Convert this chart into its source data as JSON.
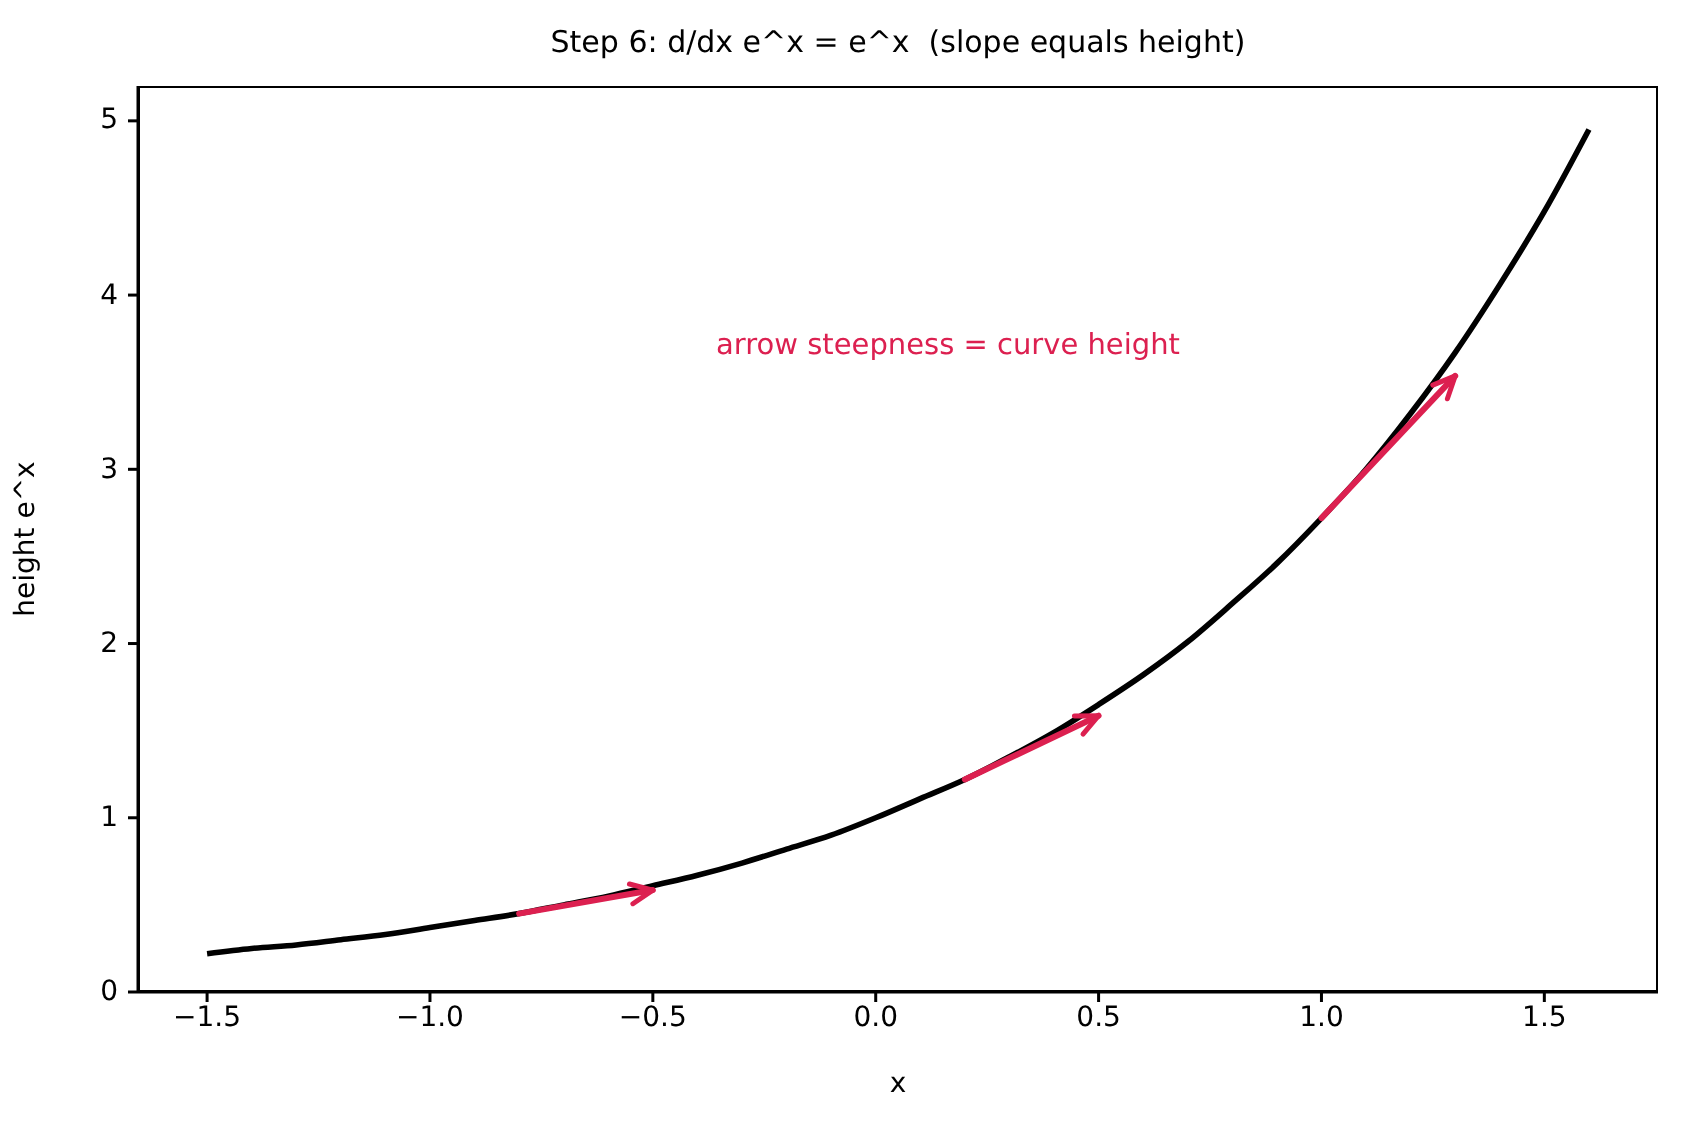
{
  "chart_data": {
    "type": "line",
    "title": "Step 6: d/dx e^x = e^x  (slope equals height)",
    "xlabel": "x",
    "ylabel": "height e^x",
    "xlim": [
      -1.655,
      1.755
    ],
    "ylim": [
      0,
      5.2
    ],
    "xticks": [
      {
        "value": -1.5,
        "label": "−1.5"
      },
      {
        "value": -1,
        "label": "−1.0"
      },
      {
        "value": -0.5,
        "label": "−0.5"
      },
      {
        "value": 0,
        "label": "0.0"
      },
      {
        "value": 0.5,
        "label": "0.5"
      },
      {
        "value": 1,
        "label": "1.0"
      },
      {
        "value": 1.5,
        "label": "1.5"
      }
    ],
    "yticks": [
      0,
      1,
      2,
      3,
      4,
      5
    ],
    "marker": "none",
    "line_style": "solid",
    "annotations": [
      "arrow steepness = curve height"
    ],
    "series": [
      {
        "color": "#000000",
        "x": [
          -1.5,
          -1.4,
          -1.3,
          -1.2,
          -1.1,
          -1.0,
          -0.9,
          -0.8,
          -0.7,
          -0.6,
          -0.5,
          -0.4,
          -0.3,
          -0.2,
          -0.1,
          0,
          0.1,
          0.2,
          0.3,
          0.4,
          0.5,
          0.6,
          0.7,
          0.8,
          0.9,
          1.0,
          1.1,
          1.2,
          1.3,
          1.4,
          1.5,
          1.6
        ],
        "values": [
          0.22,
          0.25,
          0.27,
          0.3,
          0.33,
          0.37,
          0.41,
          0.45,
          0.5,
          0.55,
          0.61,
          0.67,
          0.74,
          0.82,
          0.9,
          1.0,
          1.11,
          1.22,
          1.35,
          1.49,
          1.65,
          1.82,
          2.01,
          2.23,
          2.46,
          2.72,
          3.0,
          3.32,
          3.67,
          4.06,
          4.48,
          4.95
        ]
      }
    ]
  }
}
